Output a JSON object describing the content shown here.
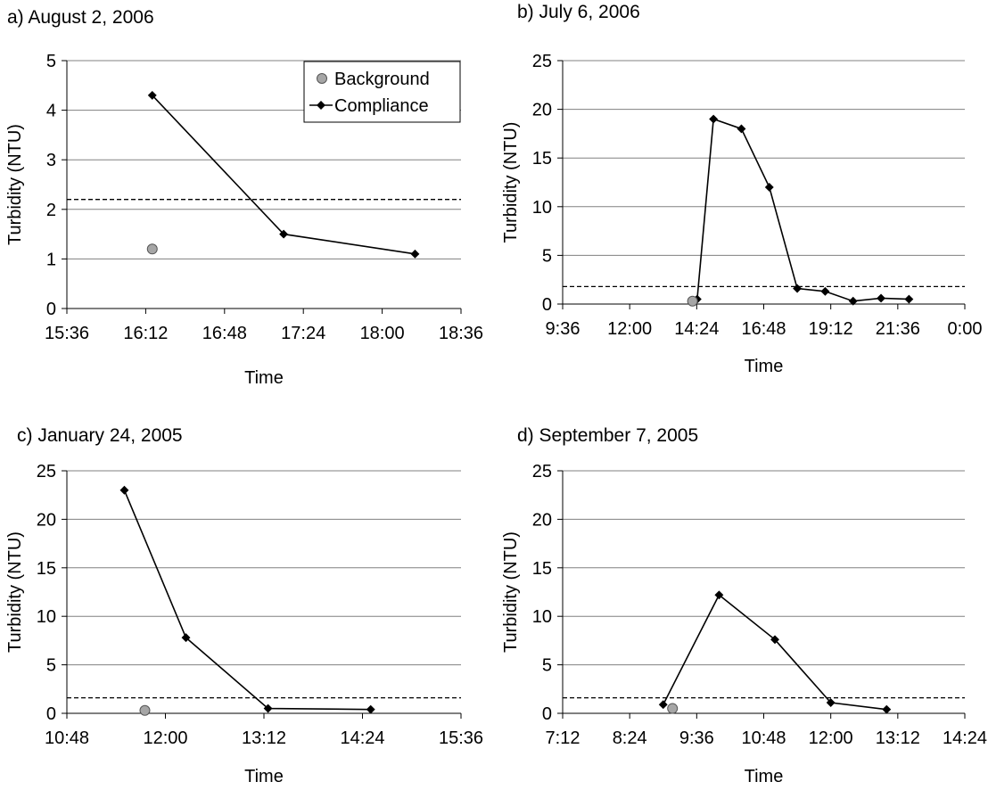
{
  "figure": {
    "series_names": [
      "Background",
      "Compliance"
    ],
    "colors": {
      "background_marker": "#a6a6a6",
      "compliance_line": "#000000",
      "gridline": "#808080",
      "threshold_line": "#000000"
    }
  },
  "chart_data": [
    {
      "type": "line",
      "title": "a) August 2, 2006",
      "xlabel": "Time",
      "ylabel": "Turbidity (NTU)",
      "x_unit": "time of day (hh:mm)",
      "xlim": [
        "15:36",
        "18:36"
      ],
      "x_ticks": [
        "15:36",
        "16:12",
        "16:48",
        "17:24",
        "18:00",
        "18:36"
      ],
      "ylim": [
        0,
        5
      ],
      "y_ticks": [
        "0",
        "1",
        "2",
        "3",
        "4",
        "5"
      ],
      "grid": "horizontal",
      "legend": {
        "position": "top-right",
        "entries": [
          "Background",
          "Compliance"
        ]
      },
      "threshold": 2.2,
      "series": [
        {
          "name": "Background",
          "style": "marker",
          "points": [
            {
              "x": "16:15",
              "y": 1.2
            }
          ]
        },
        {
          "name": "Compliance",
          "style": "line",
          "points": [
            {
              "x": "16:15",
              "y": 4.3
            },
            {
              "x": "17:15",
              "y": 1.5
            },
            {
              "x": "18:15",
              "y": 1.1
            }
          ]
        }
      ]
    },
    {
      "type": "line",
      "title": "b) July 6, 2006",
      "xlabel": "Time",
      "ylabel": "Turbidity (NTU)",
      "x_unit": "time of day (hh:mm)",
      "xlim": [
        "9:36",
        "0:00"
      ],
      "x_ticks": [
        "9:36",
        "12:00",
        "14:24",
        "16:48",
        "19:12",
        "21:36",
        "0:00"
      ],
      "ylim": [
        0,
        25
      ],
      "y_ticks": [
        "0",
        "5",
        "10",
        "15",
        "20",
        "25"
      ],
      "grid": "horizontal",
      "legend": null,
      "threshold": 1.8,
      "series": [
        {
          "name": "Background",
          "style": "marker",
          "points": [
            {
              "x": "14:15",
              "y": 0.3
            }
          ]
        },
        {
          "name": "Compliance",
          "style": "line",
          "points": [
            {
              "x": "14:15",
              "y": 0.3
            },
            {
              "x": "14:25",
              "y": 0.5
            },
            {
              "x": "15:00",
              "y": 19
            },
            {
              "x": "16:00",
              "y": 18
            },
            {
              "x": "17:00",
              "y": 12
            },
            {
              "x": "18:00",
              "y": 1.6
            },
            {
              "x": "19:00",
              "y": 1.3
            },
            {
              "x": "20:00",
              "y": 0.3
            },
            {
              "x": "21:00",
              "y": 0.6
            },
            {
              "x": "22:00",
              "y": 0.5
            }
          ]
        }
      ]
    },
    {
      "type": "line",
      "title": "c) January 24, 2005",
      "xlabel": "Time",
      "ylabel": "Turbidity (NTU)",
      "x_unit": "time of day (hh:mm)",
      "xlim": [
        "10:48",
        "15:36"
      ],
      "x_ticks": [
        "10:48",
        "12:00",
        "13:12",
        "14:24",
        "15:36"
      ],
      "ylim": [
        0,
        25
      ],
      "y_ticks": [
        "0",
        "5",
        "10",
        "15",
        "20",
        "25"
      ],
      "grid": "horizontal",
      "legend": null,
      "threshold": 1.6,
      "series": [
        {
          "name": "Background",
          "style": "marker",
          "points": [
            {
              "x": "11:45",
              "y": 0.3
            }
          ]
        },
        {
          "name": "Compliance",
          "style": "line",
          "points": [
            {
              "x": "11:30",
              "y": 23
            },
            {
              "x": "12:15",
              "y": 7.8
            },
            {
              "x": "13:15",
              "y": 0.5
            },
            {
              "x": "14:30",
              "y": 0.4
            }
          ]
        }
      ]
    },
    {
      "type": "line",
      "title": "d) September 7, 2005",
      "xlabel": "Time",
      "ylabel": "Turbidity (NTU)",
      "x_unit": "time of day (hh:mm)",
      "xlim": [
        "7:12",
        "14:24"
      ],
      "x_ticks": [
        "7:12",
        "8:24",
        "9:36",
        "10:48",
        "12:00",
        "13:12",
        "14:24"
      ],
      "ylim": [
        0,
        25
      ],
      "y_ticks": [
        "0",
        "5",
        "10",
        "15",
        "20",
        "25"
      ],
      "grid": "horizontal",
      "legend": null,
      "threshold": 1.6,
      "series": [
        {
          "name": "Background",
          "style": "marker",
          "points": [
            {
              "x": "9:10",
              "y": 0.5
            }
          ]
        },
        {
          "name": "Compliance",
          "style": "line",
          "points": [
            {
              "x": "9:00",
              "y": 0.9
            },
            {
              "x": "10:00",
              "y": 12.2
            },
            {
              "x": "11:00",
              "y": 7.6
            },
            {
              "x": "12:00",
              "y": 1.1
            },
            {
              "x": "13:00",
              "y": 0.4
            }
          ]
        }
      ]
    }
  ]
}
